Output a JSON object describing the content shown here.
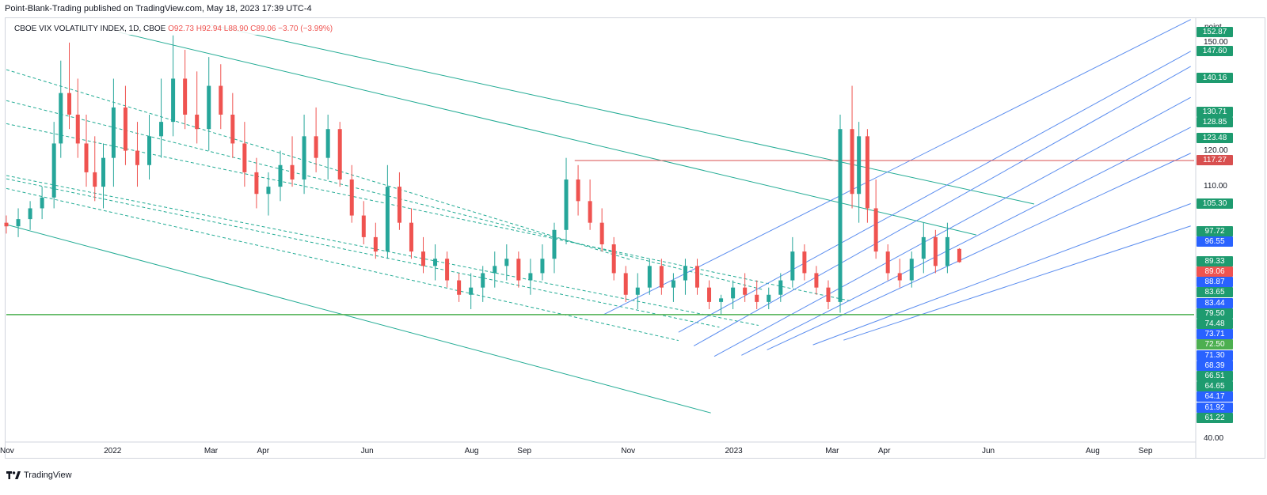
{
  "header": {
    "publisher_line": "Point-Blank-Trading published on TradingView.com, May 18, 2023 17:39 UTC-4"
  },
  "legend": {
    "symbol": "CBOE VIX VOLATILITY INDEX, 1D, CBOE",
    "open": "O92.73",
    "high": "H92.94",
    "low": "L88.90",
    "close": "C89.06",
    "change": "−3.70 (−3.99%)"
  },
  "footer": {
    "brand": "TradingView"
  },
  "colors": {
    "up": "#26a69a",
    "down": "#ef5350",
    "channel_teal": "#22ab94",
    "fan_blue": "#5b8def",
    "horizontal_red": "#d84f4f",
    "horizontal_green": "#4caf50"
  },
  "chart_data": {
    "type": "candlestick",
    "title": "CBOE VIX VOLATILITY INDEX, 1D, CBOE",
    "y_unit_label": "point",
    "ylim": [
      40,
      157
    ],
    "x_range": [
      "2021-11-01",
      "2023-09-30"
    ],
    "x_ticks": [
      {
        "label": "Nov",
        "date": "2021-11-01"
      },
      {
        "label": "2022",
        "date": "2022-01-01"
      },
      {
        "label": "Mar",
        "date": "2022-03-01"
      },
      {
        "label": "Apr",
        "date": "2022-04-01"
      },
      {
        "label": "Jun",
        "date": "2022-06-01"
      },
      {
        "label": "Aug",
        "date": "2022-08-01"
      },
      {
        "label": "Sep",
        "date": "2022-09-01"
      },
      {
        "label": "Nov",
        "date": "2022-11-01"
      },
      {
        "label": "2023",
        "date": "2023-01-01"
      },
      {
        "label": "Mar",
        "date": "2023-03-01"
      },
      {
        "label": "Apr",
        "date": "2023-04-01"
      },
      {
        "label": "Jun",
        "date": "2023-06-01"
      },
      {
        "label": "Aug",
        "date": "2023-08-01"
      },
      {
        "label": "Sep",
        "date": "2023-09-01"
      }
    ],
    "y_ticks": [
      "150.00",
      "120.00",
      "110.00",
      "40.00"
    ],
    "price_tags": [
      {
        "value": 152.87,
        "color": "#1e9b6f"
      },
      {
        "value": 147.6,
        "color": "#1e9b6f"
      },
      {
        "value": 140.16,
        "color": "#1e9b6f"
      },
      {
        "value": 130.71,
        "color": "#1e9b6f"
      },
      {
        "value": 128.85,
        "color": "#1e9b6f"
      },
      {
        "value": 123.48,
        "color": "#1e9b6f"
      },
      {
        "value": 117.27,
        "color": "#d84f4f"
      },
      {
        "value": 105.3,
        "color": "#1e9b6f"
      },
      {
        "value": 97.72,
        "color": "#1e9b6f"
      },
      {
        "value": 96.55,
        "color": "#2962ff"
      },
      {
        "value": 89.33,
        "color": "#1e9b6f"
      },
      {
        "value": 89.06,
        "color": "#ef5350"
      },
      {
        "value": 88.87,
        "color": "#2962ff"
      },
      {
        "value": 83.65,
        "color": "#1e9b6f"
      },
      {
        "value": 83.44,
        "color": "#2962ff"
      },
      {
        "value": 79.5,
        "color": "#1e9b6f"
      },
      {
        "value": 74.48,
        "color": "#1e9b6f"
      },
      {
        "value": 73.71,
        "color": "#2962ff"
      },
      {
        "value": 72.5,
        "color": "#4caf50"
      },
      {
        "value": 71.3,
        "color": "#2962ff"
      },
      {
        "value": 68.39,
        "color": "#2962ff"
      },
      {
        "value": 66.51,
        "color": "#1e9b6f"
      },
      {
        "value": 64.65,
        "color": "#1e9b6f"
      },
      {
        "value": 64.17,
        "color": "#2962ff"
      },
      {
        "value": 61.92,
        "color": "#2962ff"
      },
      {
        "value": 61.22,
        "color": "#1e9b6f"
      }
    ],
    "horizontal_lines": [
      {
        "value": 117.27,
        "start": "2022-10-01",
        "color": "#d84f4f",
        "style": "solid"
      },
      {
        "value": 74.48,
        "start": "2021-11-01",
        "color": "#4caf50",
        "style": "solid"
      }
    ],
    "trend_lines": [
      {
        "kind": "channel",
        "style": "solid",
        "from": [
          "2021-11-01",
          99.5
        ],
        "to": [
          "2022-12-20",
          47.2
        ]
      },
      {
        "kind": "channel",
        "style": "dashed",
        "from": [
          "2021-11-01",
          109.5
        ],
        "to": [
          "2022-12-01",
          67.3
        ]
      },
      {
        "kind": "channel",
        "style": "dashed",
        "from": [
          "2021-11-01",
          112.2
        ],
        "to": [
          "2022-12-25",
          71.0
        ]
      },
      {
        "kind": "channel",
        "style": "dashed",
        "from": [
          "2021-11-01",
          113.1
        ],
        "to": [
          "2023-01-17",
          71.5
        ]
      },
      {
        "kind": "channel",
        "style": "dashed",
        "from": [
          "2021-11-01",
          127.5
        ],
        "to": [
          "2023-03-13",
          78.2
        ]
      },
      {
        "kind": "channel",
        "style": "dashed",
        "from": [
          "2021-11-01",
          133.9
        ],
        "to": [
          "2023-01-19",
          81.5
        ]
      },
      {
        "kind": "channel",
        "style": "dashed",
        "from": [
          "2021-11-01",
          142.5
        ],
        "to": [
          "2022-11-03",
          89.7
        ]
      },
      {
        "kind": "channel",
        "style": "solid",
        "from": [
          "2022-01-06",
          152.9
        ],
        "to": [
          "2023-05-25",
          96.6
        ]
      },
      {
        "kind": "channel",
        "style": "solid",
        "from": [
          "2022-03-01",
          154.9
        ],
        "to": [
          "2023-06-28",
          105.2
        ]
      },
      {
        "kind": "fan",
        "style": "solid",
        "from": [
          "2022-10-18",
          74.5
        ],
        "to": [
          "2023-09-28",
          156.4
        ]
      },
      {
        "kind": "fan",
        "style": "solid",
        "from": [
          "2022-12-01",
          69.6
        ],
        "to": [
          "2023-09-28",
          147.6
        ]
      },
      {
        "kind": "fan",
        "style": "solid",
        "from": [
          "2022-12-10",
          65.8
        ],
        "to": [
          "2023-09-28",
          143.4
        ]
      },
      {
        "kind": "fan",
        "style": "solid",
        "from": [
          "2022-12-22",
          62.9
        ],
        "to": [
          "2023-09-28",
          134.8
        ]
      },
      {
        "kind": "fan",
        "style": "solid",
        "from": [
          "2023-01-07",
          63.2
        ],
        "to": [
          "2023-09-28",
          126.5
        ]
      },
      {
        "kind": "fan",
        "style": "solid",
        "from": [
          "2023-01-22",
          64.7
        ],
        "to": [
          "2023-09-28",
          119.3
        ]
      },
      {
        "kind": "fan",
        "style": "solid",
        "from": [
          "2023-02-18",
          66.1
        ],
        "to": [
          "2023-09-28",
          105.3
        ]
      },
      {
        "kind": "fan",
        "style": "solid",
        "from": [
          "2023-03-08",
          67.4
        ],
        "to": [
          "2023-09-28",
          99.1
        ]
      }
    ],
    "candles": [
      [
        "2021-11-01",
        100.0,
        102.0,
        97.0,
        99.0
      ],
      [
        "2021-11-08",
        99.0,
        104.0,
        96.0,
        101.0
      ],
      [
        "2021-11-15",
        101.0,
        106.0,
        98.0,
        104.0
      ],
      [
        "2021-11-22",
        104.0,
        110.0,
        101.0,
        107.0
      ],
      [
        "2021-11-29",
        107.0,
        128.0,
        104.0,
        122.0
      ],
      [
        "2021-12-03",
        122.0,
        145.0,
        118.0,
        136.0
      ],
      [
        "2021-12-08",
        136.0,
        150.0,
        126.0,
        130.0
      ],
      [
        "2021-12-13",
        130.0,
        140.0,
        118.0,
        122.0
      ],
      [
        "2021-12-18",
        122.0,
        130.0,
        110.0,
        114.0
      ],
      [
        "2021-12-23",
        114.0,
        124.0,
        106.0,
        110.0
      ],
      [
        "2021-12-28",
        110.0,
        122.0,
        104.0,
        118.0
      ],
      [
        "2022-01-03",
        118.0,
        140.0,
        110.0,
        132.0
      ],
      [
        "2022-01-10",
        132.0,
        138.0,
        116.0,
        120.0
      ],
      [
        "2022-01-17",
        120.0,
        128.0,
        110.0,
        116.0
      ],
      [
        "2022-01-24",
        116.0,
        130.0,
        112.0,
        124.0
      ],
      [
        "2022-01-31",
        124.0,
        140.0,
        118.0,
        128.0
      ],
      [
        "2022-02-07",
        128.0,
        152.0,
        124.0,
        140.0
      ],
      [
        "2022-02-14",
        140.0,
        148.0,
        126.0,
        130.0
      ],
      [
        "2022-02-21",
        130.0,
        142.0,
        122.0,
        126.0
      ],
      [
        "2022-02-28",
        126.0,
        146.0,
        120.0,
        138.0
      ],
      [
        "2022-03-07",
        138.0,
        144.0,
        126.0,
        130.0
      ],
      [
        "2022-03-14",
        130.0,
        136.0,
        118.0,
        122.0
      ],
      [
        "2022-03-21",
        122.0,
        128.0,
        110.0,
        114.0
      ],
      [
        "2022-03-28",
        114.0,
        118.0,
        104.0,
        108.0
      ],
      [
        "2022-04-04",
        108.0,
        114.0,
        102.0,
        110.0
      ],
      [
        "2022-04-11",
        110.0,
        120.0,
        106.0,
        116.0
      ],
      [
        "2022-04-18",
        116.0,
        124.0,
        110.0,
        112.0
      ],
      [
        "2022-04-25",
        112.0,
        130.0,
        108.0,
        124.0
      ],
      [
        "2022-05-02",
        124.0,
        132.0,
        114.0,
        118.0
      ],
      [
        "2022-05-09",
        118.0,
        130.0,
        112.0,
        126.0
      ],
      [
        "2022-05-16",
        126.0,
        128.0,
        110.0,
        112.0
      ],
      [
        "2022-05-23",
        112.0,
        116.0,
        100.0,
        102.0
      ],
      [
        "2022-05-30",
        102.0,
        106.0,
        94.0,
        96.0
      ],
      [
        "2022-06-06",
        96.0,
        100.0,
        90.0,
        92.0
      ],
      [
        "2022-06-13",
        92.0,
        116.0,
        90.0,
        110.0
      ],
      [
        "2022-06-20",
        110.0,
        114.0,
        98.0,
        100.0
      ],
      [
        "2022-06-27",
        100.0,
        104.0,
        90.0,
        92.0
      ],
      [
        "2022-07-04",
        92.0,
        96.0,
        86.0,
        88.0
      ],
      [
        "2022-07-11",
        88.0,
        94.0,
        84.0,
        90.0
      ],
      [
        "2022-07-18",
        90.0,
        92.0,
        82.0,
        84.0
      ],
      [
        "2022-07-25",
        84.0,
        86.0,
        78.0,
        80.0
      ],
      [
        "2022-08-01",
        80.0,
        86.0,
        76.0,
        82.0
      ],
      [
        "2022-08-08",
        82.0,
        88.0,
        78.0,
        86.0
      ],
      [
        "2022-08-15",
        86.0,
        92.0,
        82.0,
        88.0
      ],
      [
        "2022-08-22",
        88.0,
        94.0,
        84.0,
        90.0
      ],
      [
        "2022-08-29",
        90.0,
        92.0,
        82.0,
        84.0
      ],
      [
        "2022-09-05",
        84.0,
        90.0,
        80.0,
        86.0
      ],
      [
        "2022-09-12",
        86.0,
        94.0,
        84.0,
        90.0
      ],
      [
        "2022-09-19",
        90.0,
        100.0,
        86.0,
        98.0
      ],
      [
        "2022-09-26",
        98.0,
        118.0,
        94.0,
        112.0
      ],
      [
        "2022-10-03",
        112.0,
        116.0,
        102.0,
        106.0
      ],
      [
        "2022-10-10",
        106.0,
        112.0,
        98.0,
        100.0
      ],
      [
        "2022-10-17",
        100.0,
        104.0,
        92.0,
        94.0
      ],
      [
        "2022-10-24",
        94.0,
        96.0,
        84.0,
        86.0
      ],
      [
        "2022-10-31",
        86.0,
        88.0,
        78.0,
        80.0
      ],
      [
        "2022-11-07",
        80.0,
        86.0,
        76.0,
        82.0
      ],
      [
        "2022-11-14",
        82.0,
        90.0,
        80.0,
        88.0
      ],
      [
        "2022-11-21",
        88.0,
        90.0,
        80.0,
        82.0
      ],
      [
        "2022-11-28",
        82.0,
        86.0,
        78.0,
        84.0
      ],
      [
        "2022-12-05",
        84.0,
        90.0,
        80.0,
        88.0
      ],
      [
        "2022-12-12",
        88.0,
        90.0,
        80.0,
        82.0
      ],
      [
        "2022-12-19",
        82.0,
        84.0,
        76.0,
        78.0
      ],
      [
        "2022-12-26",
        78.0,
        80.0,
        74.5,
        79.0
      ],
      [
        "2023-01-02",
        79.0,
        84.0,
        76.0,
        82.0
      ],
      [
        "2023-01-09",
        82.0,
        86.0,
        78.0,
        80.0
      ],
      [
        "2023-01-16",
        80.0,
        84.0,
        76.0,
        78.0
      ],
      [
        "2023-01-23",
        78.0,
        82.0,
        76.0,
        80.0
      ],
      [
        "2023-01-30",
        80.0,
        86.0,
        78.0,
        84.0
      ],
      [
        "2023-02-06",
        84.0,
        96.0,
        82.0,
        92.0
      ],
      [
        "2023-02-13",
        92.0,
        94.0,
        84.0,
        86.0
      ],
      [
        "2023-02-20",
        86.0,
        88.0,
        80.0,
        82.0
      ],
      [
        "2023-02-27",
        82.0,
        84.0,
        76.0,
        78.0
      ],
      [
        "2023-03-06",
        78.0,
        130.0,
        75.0,
        126.0
      ],
      [
        "2023-03-13",
        126.0,
        138.0,
        104.0,
        108.0
      ],
      [
        "2023-03-17",
        108.0,
        128.0,
        100.0,
        124.0
      ],
      [
        "2023-03-22",
        124.0,
        126.0,
        100.0,
        104.0
      ],
      [
        "2023-03-27",
        104.0,
        112.0,
        90.0,
        92.0
      ],
      [
        "2023-04-03",
        92.0,
        94.0,
        84.0,
        86.0
      ],
      [
        "2023-04-10",
        86.0,
        90.0,
        82.0,
        84.0
      ],
      [
        "2023-04-17",
        84.0,
        92.0,
        82.0,
        90.0
      ],
      [
        "2023-04-24",
        90.0,
        100.0,
        86.0,
        96.0
      ],
      [
        "2023-05-01",
        96.0,
        98.0,
        86.0,
        88.0
      ],
      [
        "2023-05-08",
        88.0,
        100.0,
        86.0,
        96.0
      ],
      [
        "2023-05-15",
        92.73,
        92.94,
        88.9,
        89.06
      ]
    ]
  }
}
